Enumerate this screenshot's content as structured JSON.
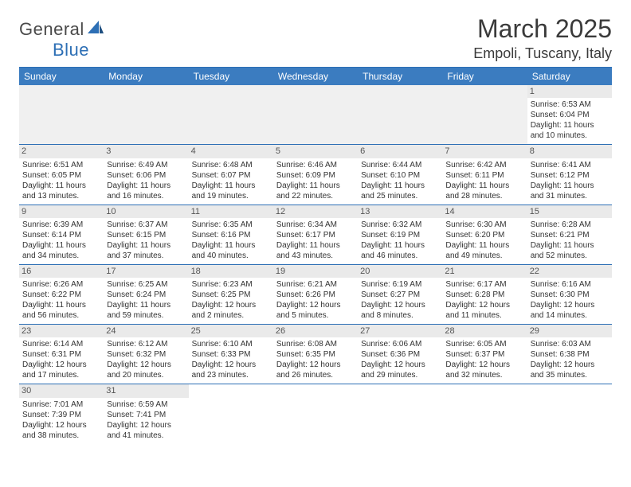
{
  "logo": {
    "text1": "General",
    "text2": "Blue"
  },
  "title": "March 2025",
  "location": "Empoli, Tuscany, Italy",
  "colors": {
    "header_bg": "#3b7cc0",
    "border": "#2d6fb5",
    "daynum_bg": "#eaeaea",
    "empty_bg": "#f0f0f0",
    "text": "#333333",
    "title_text": "#3a3a3a"
  },
  "day_headers": [
    "Sunday",
    "Monday",
    "Tuesday",
    "Wednesday",
    "Thursday",
    "Friday",
    "Saturday"
  ],
  "weeks": [
    [
      {
        "empty": true
      },
      {
        "empty": true
      },
      {
        "empty": true
      },
      {
        "empty": true
      },
      {
        "empty": true
      },
      {
        "empty": true
      },
      {
        "n": "1",
        "sunrise": "6:53 AM",
        "sunset": "6:04 PM",
        "daylight": "11 hours and 10 minutes."
      }
    ],
    [
      {
        "n": "2",
        "sunrise": "6:51 AM",
        "sunset": "6:05 PM",
        "daylight": "11 hours and 13 minutes."
      },
      {
        "n": "3",
        "sunrise": "6:49 AM",
        "sunset": "6:06 PM",
        "daylight": "11 hours and 16 minutes."
      },
      {
        "n": "4",
        "sunrise": "6:48 AM",
        "sunset": "6:07 PM",
        "daylight": "11 hours and 19 minutes."
      },
      {
        "n": "5",
        "sunrise": "6:46 AM",
        "sunset": "6:09 PM",
        "daylight": "11 hours and 22 minutes."
      },
      {
        "n": "6",
        "sunrise": "6:44 AM",
        "sunset": "6:10 PM",
        "daylight": "11 hours and 25 minutes."
      },
      {
        "n": "7",
        "sunrise": "6:42 AM",
        "sunset": "6:11 PM",
        "daylight": "11 hours and 28 minutes."
      },
      {
        "n": "8",
        "sunrise": "6:41 AM",
        "sunset": "6:12 PM",
        "daylight": "11 hours and 31 minutes."
      }
    ],
    [
      {
        "n": "9",
        "sunrise": "6:39 AM",
        "sunset": "6:14 PM",
        "daylight": "11 hours and 34 minutes."
      },
      {
        "n": "10",
        "sunrise": "6:37 AM",
        "sunset": "6:15 PM",
        "daylight": "11 hours and 37 minutes."
      },
      {
        "n": "11",
        "sunrise": "6:35 AM",
        "sunset": "6:16 PM",
        "daylight": "11 hours and 40 minutes."
      },
      {
        "n": "12",
        "sunrise": "6:34 AM",
        "sunset": "6:17 PM",
        "daylight": "11 hours and 43 minutes."
      },
      {
        "n": "13",
        "sunrise": "6:32 AM",
        "sunset": "6:19 PM",
        "daylight": "11 hours and 46 minutes."
      },
      {
        "n": "14",
        "sunrise": "6:30 AM",
        "sunset": "6:20 PM",
        "daylight": "11 hours and 49 minutes."
      },
      {
        "n": "15",
        "sunrise": "6:28 AM",
        "sunset": "6:21 PM",
        "daylight": "11 hours and 52 minutes."
      }
    ],
    [
      {
        "n": "16",
        "sunrise": "6:26 AM",
        "sunset": "6:22 PM",
        "daylight": "11 hours and 56 minutes."
      },
      {
        "n": "17",
        "sunrise": "6:25 AM",
        "sunset": "6:24 PM",
        "daylight": "11 hours and 59 minutes."
      },
      {
        "n": "18",
        "sunrise": "6:23 AM",
        "sunset": "6:25 PM",
        "daylight": "12 hours and 2 minutes."
      },
      {
        "n": "19",
        "sunrise": "6:21 AM",
        "sunset": "6:26 PM",
        "daylight": "12 hours and 5 minutes."
      },
      {
        "n": "20",
        "sunrise": "6:19 AM",
        "sunset": "6:27 PM",
        "daylight": "12 hours and 8 minutes."
      },
      {
        "n": "21",
        "sunrise": "6:17 AM",
        "sunset": "6:28 PM",
        "daylight": "12 hours and 11 minutes."
      },
      {
        "n": "22",
        "sunrise": "6:16 AM",
        "sunset": "6:30 PM",
        "daylight": "12 hours and 14 minutes."
      }
    ],
    [
      {
        "n": "23",
        "sunrise": "6:14 AM",
        "sunset": "6:31 PM",
        "daylight": "12 hours and 17 minutes."
      },
      {
        "n": "24",
        "sunrise": "6:12 AM",
        "sunset": "6:32 PM",
        "daylight": "12 hours and 20 minutes."
      },
      {
        "n": "25",
        "sunrise": "6:10 AM",
        "sunset": "6:33 PM",
        "daylight": "12 hours and 23 minutes."
      },
      {
        "n": "26",
        "sunrise": "6:08 AM",
        "sunset": "6:35 PM",
        "daylight": "12 hours and 26 minutes."
      },
      {
        "n": "27",
        "sunrise": "6:06 AM",
        "sunset": "6:36 PM",
        "daylight": "12 hours and 29 minutes."
      },
      {
        "n": "28",
        "sunrise": "6:05 AM",
        "sunset": "6:37 PM",
        "daylight": "12 hours and 32 minutes."
      },
      {
        "n": "29",
        "sunrise": "6:03 AM",
        "sunset": "6:38 PM",
        "daylight": "12 hours and 35 minutes."
      }
    ],
    [
      {
        "n": "30",
        "sunrise": "7:01 AM",
        "sunset": "7:39 PM",
        "daylight": "12 hours and 38 minutes."
      },
      {
        "n": "31",
        "sunrise": "6:59 AM",
        "sunset": "7:41 PM",
        "daylight": "12 hours and 41 minutes."
      },
      {
        "empty": true
      },
      {
        "empty": true
      },
      {
        "empty": true
      },
      {
        "empty": true
      },
      {
        "empty": true
      }
    ]
  ],
  "labels": {
    "sunrise": "Sunrise:",
    "sunset": "Sunset:",
    "daylight": "Daylight:"
  }
}
